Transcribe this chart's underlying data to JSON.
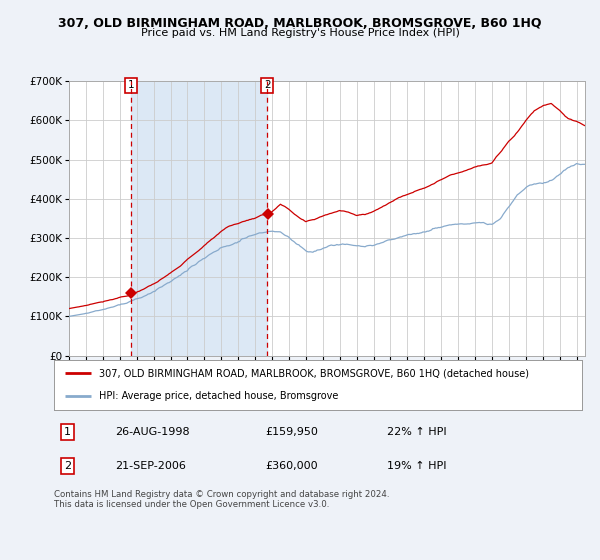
{
  "title": "307, OLD BIRMINGHAM ROAD, MARLBROOK, BROMSGROVE, B60 1HQ",
  "subtitle": "Price paid vs. HM Land Registry's House Price Index (HPI)",
  "red_label": "307, OLD BIRMINGHAM ROAD, MARLBROOK, BROMSGROVE, B60 1HQ (detached house)",
  "blue_label": "HPI: Average price, detached house, Bromsgrove",
  "sale1_date": "26-AUG-1998",
  "sale1_price": "£159,950",
  "sale1_hpi": "22% ↑ HPI",
  "sale2_date": "21-SEP-2006",
  "sale2_price": "£360,000",
  "sale2_hpi": "19% ↑ HPI",
  "footer": "Contains HM Land Registry data © Crown copyright and database right 2024.\nThis data is licensed under the Open Government Licence v3.0.",
  "ylim": [
    0,
    700000
  ],
  "yticks": [
    0,
    100000,
    200000,
    300000,
    400000,
    500000,
    600000,
    700000
  ],
  "ytick_labels": [
    "£0",
    "£100K",
    "£200K",
    "£300K",
    "£400K",
    "£500K",
    "£600K",
    "£700K"
  ],
  "bg_color": "#eef2f8",
  "plot_bg": "#ffffff",
  "red_color": "#cc0000",
  "blue_color": "#88aacc",
  "shade_color": "#dce8f5",
  "vline_color": "#cc0000",
  "marker1_year": 1998.65,
  "marker2_year": 2006.72,
  "marker1_val": 159950,
  "marker2_val": 360000,
  "year_start": 1995.0,
  "year_end": 2025.5
}
